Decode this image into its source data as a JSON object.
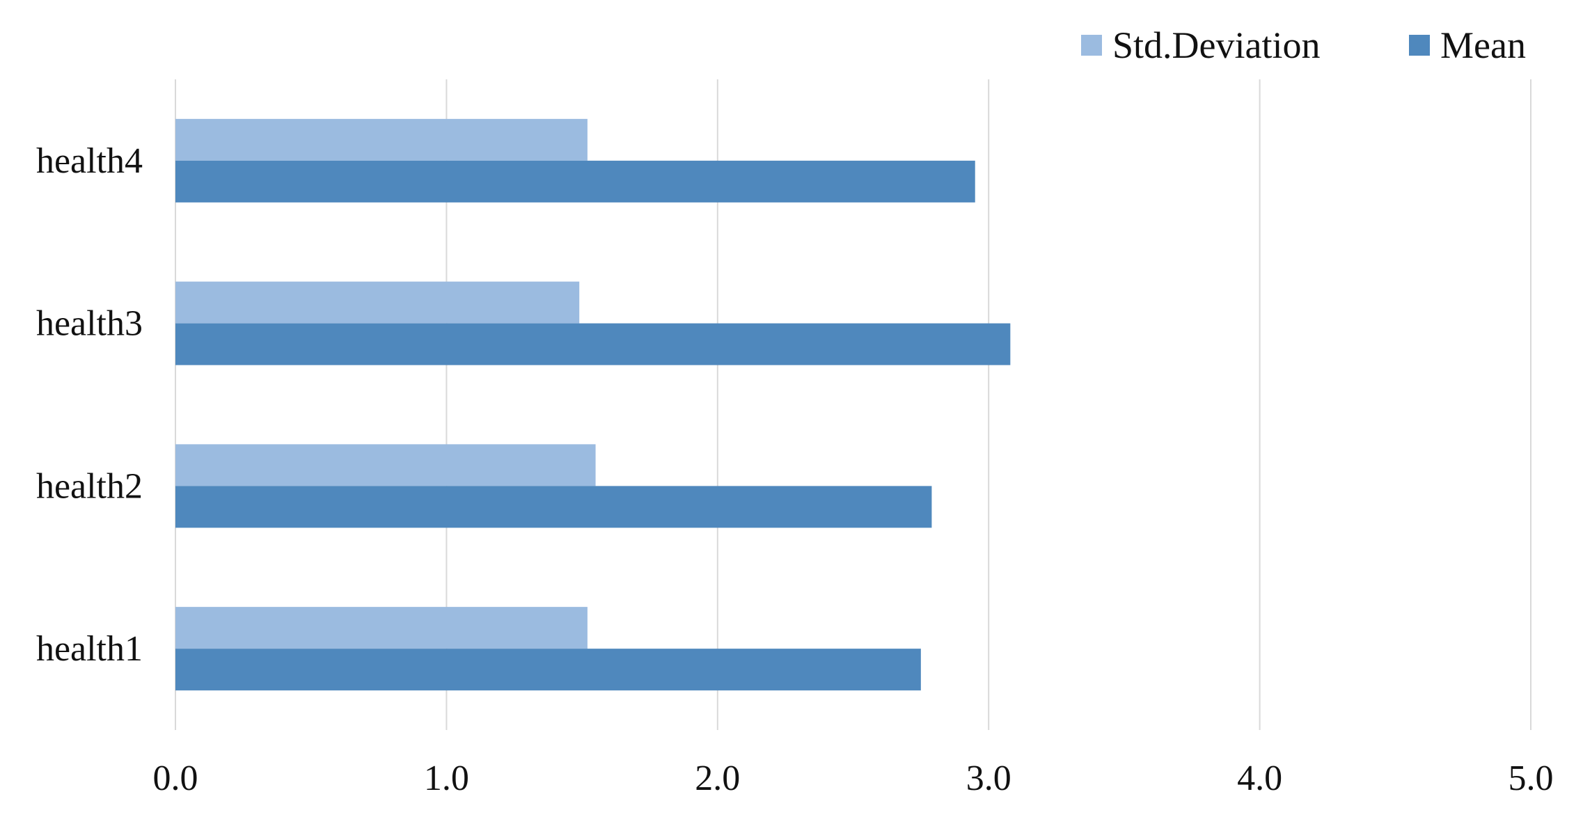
{
  "chart_data": {
    "type": "bar",
    "orientation": "horizontal",
    "categories": [
      "health1",
      "health2",
      "health3",
      "health4"
    ],
    "series": [
      {
        "name": "Std.Deviation",
        "values": [
          1.52,
          1.55,
          1.49,
          1.52
        ],
        "color": "#9bbbe0"
      },
      {
        "name": "Mean",
        "values": [
          2.75,
          2.79,
          3.08,
          2.95
        ],
        "color": "#4f88bd"
      }
    ],
    "xlim": [
      0,
      5
    ],
    "xticks": [
      "0.0",
      "1.0",
      "2.0",
      "3.0",
      "4.0",
      "5.0"
    ],
    "grid": true,
    "legend_position": "top-right",
    "title": "",
    "xlabel": "",
    "ylabel": ""
  }
}
